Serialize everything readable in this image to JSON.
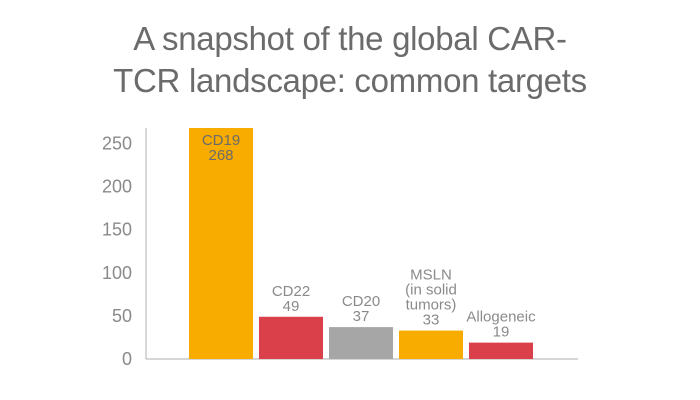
{
  "chart_data": {
    "type": "bar",
    "title_lines": [
      "A snapshot of the global CAR-",
      "TCR landscape: common targets"
    ],
    "ylim": [
      0,
      268
    ],
    "yticks": [
      0,
      50,
      100,
      150,
      200,
      250
    ],
    "grid": false,
    "bars": [
      {
        "label_lines": [
          "CD19",
          "268"
        ],
        "value": 268,
        "color": "#f8ac00",
        "label_color": "#6b6b6b",
        "label_inside": true
      },
      {
        "label_lines": [
          "CD22",
          "49"
        ],
        "value": 49,
        "color": "#d9404a",
        "label_color": "#8a8a8a",
        "label_inside": false
      },
      {
        "label_lines": [
          "CD20",
          "37"
        ],
        "value": 37,
        "color": "#a6a6a6",
        "label_color": "#8a8a8a",
        "label_inside": false
      },
      {
        "label_lines": [
          "MSLN",
          "(in solid",
          "tumors)",
          "33"
        ],
        "value": 33,
        "color": "#f8ac00",
        "label_color": "#8a8a8a",
        "label_inside": false
      },
      {
        "label_lines": [
          "Allogeneic",
          "19"
        ],
        "value": 19,
        "color": "#d9404a",
        "label_color": "#8a8a8a",
        "label_inside": false
      }
    ],
    "axis_color": "#bdbdbd"
  }
}
